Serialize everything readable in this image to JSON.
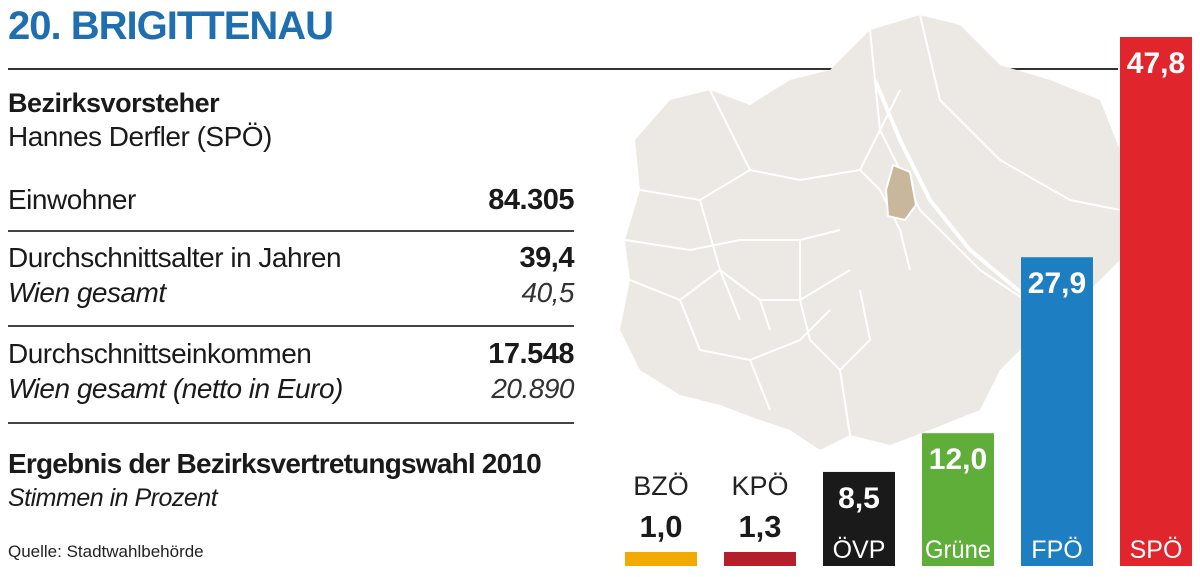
{
  "header": {
    "title": "20. BRIGITTENAU"
  },
  "info": {
    "mayor_label": "Bezirksvorsteher",
    "mayor_name": "Hannes Derfler (SPÖ)",
    "population_label": "Einwohner",
    "population_value": "84.305",
    "age_label": "Durchschnittsalter in Jahren",
    "age_value": "39,4",
    "age_vienna_label": "Wien gesamt",
    "age_vienna_value": "40,5",
    "income_label": "Durchschnittseinkommen",
    "income_value": "17.548",
    "income_vienna_label": "Wien gesamt (netto in Euro)",
    "income_vienna_value": "20.890"
  },
  "election": {
    "title": "Ergebnis der Bezirksvertretungswahl 2010",
    "subtitle": "Stimmen in Prozent",
    "source": "Quelle: Stadtwahlbehörde"
  },
  "colors": {
    "title_blue": "#1f6fb0",
    "map_fill": "#ece9e4",
    "district_highlight": "#c9b79c"
  },
  "chart_data": {
    "type": "bar",
    "title": "Ergebnis der Bezirksvertretungswahl 2010",
    "subtitle": "Stimmen in Prozent",
    "categories": [
      "BZÖ",
      "KPÖ",
      "ÖVP",
      "Grüne",
      "FPÖ",
      "SPÖ"
    ],
    "values": [
      1.0,
      1.3,
      8.5,
      12.0,
      27.9,
      47.8
    ],
    "value_labels": [
      "1,0",
      "1,3",
      "8,5",
      "12,0",
      "27,9",
      "47,8"
    ],
    "colors": [
      "#f2a900",
      "#b3202a",
      "#1a1a1a",
      "#5fae3a",
      "#1d7fc1",
      "#e0262c"
    ],
    "ylim": [
      0,
      47.8
    ]
  }
}
